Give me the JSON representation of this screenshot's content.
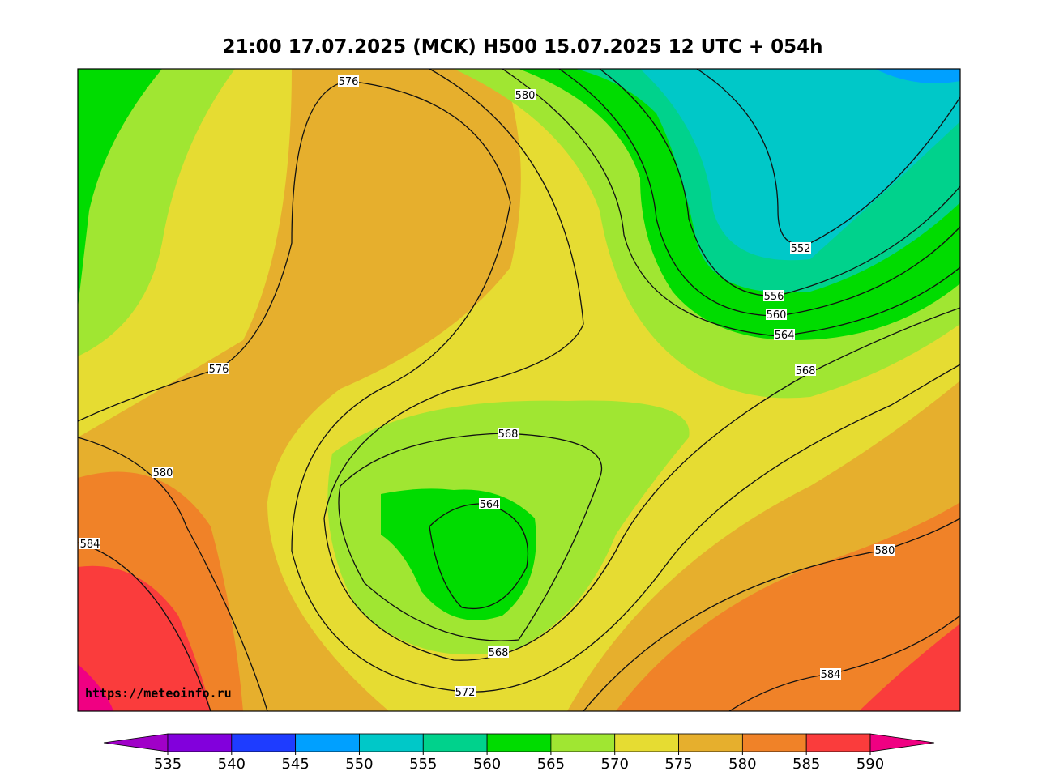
{
  "title": "21:00 17.07.2025 (MCK) H500  15.07.2025 12 UTC + 054h",
  "url": "https://meteoinfo.ru",
  "contour_labels": [
    "576",
    "580",
    "552",
    "556",
    "560",
    "564",
    "568",
    "576",
    "568",
    "580",
    "564",
    "584",
    "580",
    "568",
    "572",
    "584"
  ],
  "colorbar": {
    "ticks": [
      535,
      540,
      545,
      550,
      555,
      560,
      565,
      570,
      575,
      580,
      585,
      590
    ],
    "colors": [
      "#a000c8",
      "#8200dc",
      "#1e3cff",
      "#00a0ff",
      "#00c8c8",
      "#00d28c",
      "#00dc00",
      "#a0e632",
      "#e6dc32",
      "#e6af2d",
      "#f08228",
      "#fa3c3c",
      "#f00082"
    ]
  }
}
